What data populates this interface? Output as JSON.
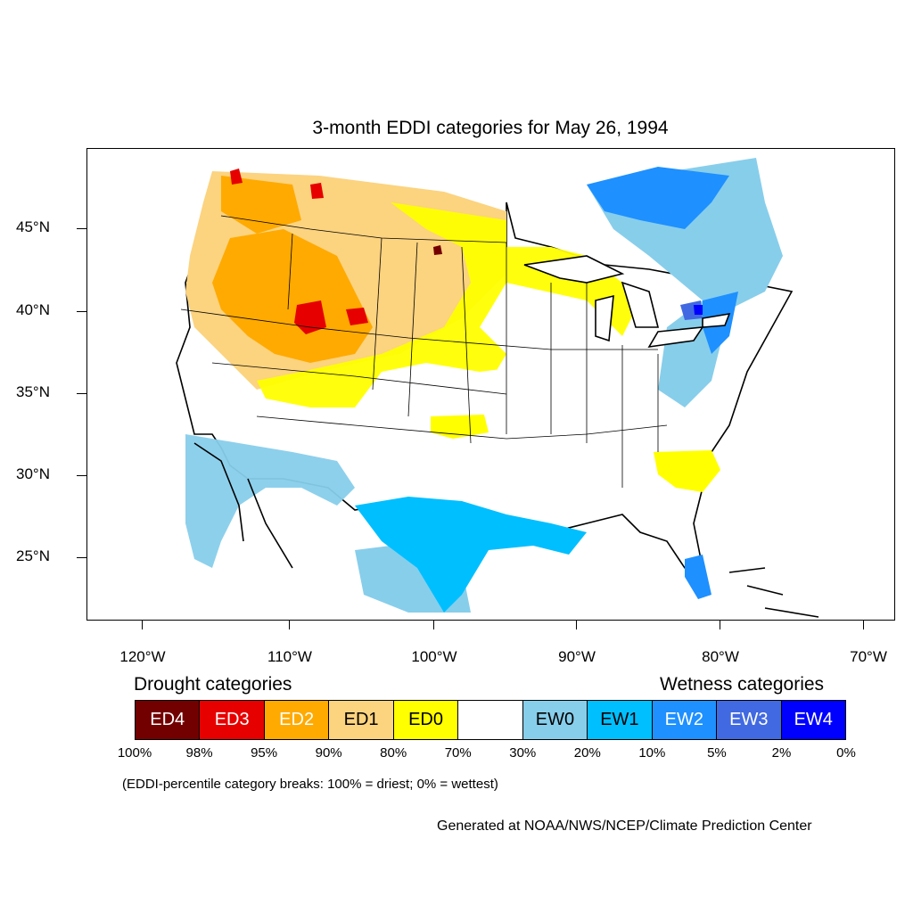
{
  "title": "3-month EDDI categories for May 26, 1994",
  "map": {
    "projection": "lambert-conformal",
    "lat_ticks": [
      "45°N",
      "40°N",
      "35°N",
      "30°N",
      "25°N"
    ],
    "lon_ticks": [
      "120°W",
      "110°W",
      "100°W",
      "90°W",
      "80°W",
      "70°W"
    ],
    "regions": [
      {
        "name": "northern-rockies-drought",
        "category": "ED2"
      },
      {
        "name": "idaho-wyoming-core",
        "category": "ED3"
      },
      {
        "name": "pacific-northwest",
        "category": "ED1"
      },
      {
        "name": "northern-plains",
        "category": "ED0"
      },
      {
        "name": "southeast-carolinas",
        "category": "ED0"
      },
      {
        "name": "texas-gulf",
        "category": "EW1"
      },
      {
        "name": "great-lakes-northeast",
        "category": "EW2"
      },
      {
        "name": "florida",
        "category": "EW2"
      },
      {
        "name": "southern-california-mexico",
        "category": "EW0"
      }
    ]
  },
  "legend": {
    "drought_title": "Drought categories",
    "wetness_title": "Wetness categories",
    "categories": [
      {
        "label": "ED4",
        "color": "#730000",
        "text_color": "#ffffff"
      },
      {
        "label": "ED3",
        "color": "#e60000",
        "text_color": "#ffffff"
      },
      {
        "label": "ED2",
        "color": "#ffaa00",
        "text_color": "#ffffff"
      },
      {
        "label": "ED1",
        "color": "#fcd37f",
        "text_color": "#000000"
      },
      {
        "label": "ED0",
        "color": "#ffff00",
        "text_color": "#000000"
      },
      {
        "label": "",
        "color": "#ffffff",
        "text_color": "#000000"
      },
      {
        "label": "EW0",
        "color": "#87ceeb",
        "text_color": "#000000"
      },
      {
        "label": "EW1",
        "color": "#00bfff",
        "text_color": "#000000"
      },
      {
        "label": "EW2",
        "color": "#1e90ff",
        "text_color": "#ffffff"
      },
      {
        "label": "EW3",
        "color": "#4169e1",
        "text_color": "#ffffff"
      },
      {
        "label": "EW4",
        "color": "#0000ff",
        "text_color": "#ffffff"
      }
    ],
    "percent_breaks": [
      "100%",
      "98%",
      "95%",
      "90%",
      "80%",
      "70%",
      "30%",
      "20%",
      "10%",
      "5%",
      "2%",
      "0%"
    ]
  },
  "note": "(EDDI-percentile category breaks: 100% = driest; 0% = wettest)",
  "credit": "Generated at NOAA/NWS/NCEP/Climate Prediction Center"
}
